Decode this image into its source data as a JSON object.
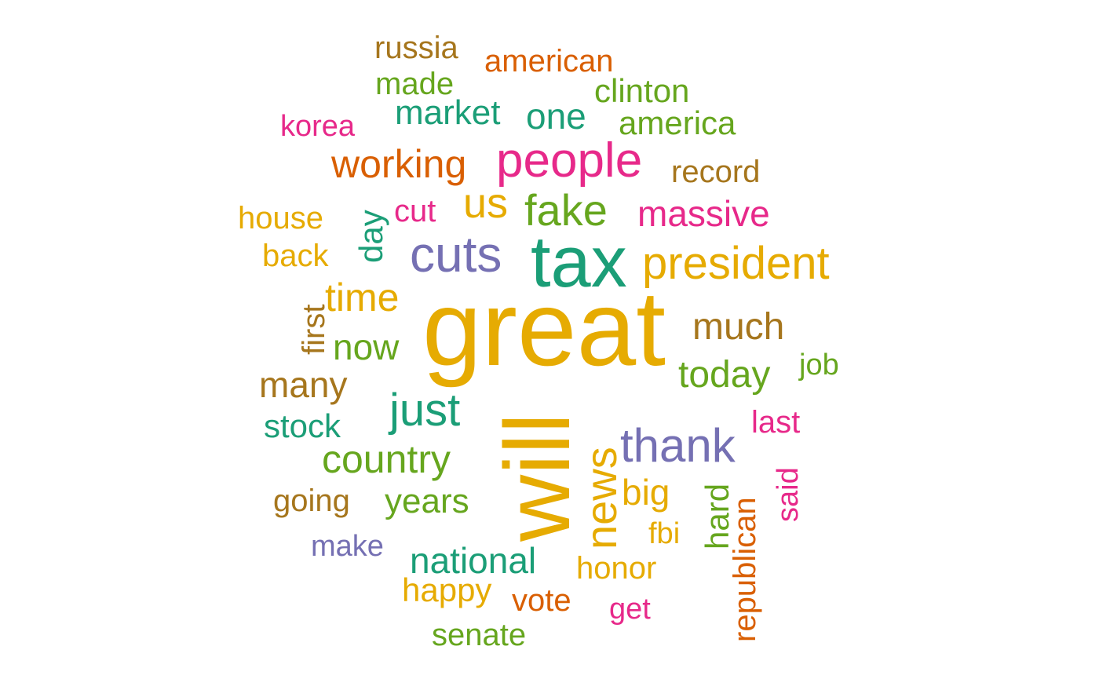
{
  "palette": {
    "teal": "#1b9e77",
    "orange": "#d95f02",
    "purple": "#7570b3",
    "magenta": "#e7298a",
    "green": "#66a61e",
    "gold": "#e6ab02",
    "brown": "#a6761d"
  },
  "words": [
    {
      "text": "great",
      "color": "gold"
    },
    {
      "text": "tax",
      "color": "teal"
    },
    {
      "text": "will",
      "color": "gold"
    },
    {
      "text": "people",
      "color": "magenta"
    },
    {
      "text": "cuts",
      "color": "purple"
    },
    {
      "text": "president",
      "color": "gold"
    },
    {
      "text": "fake",
      "color": "green"
    },
    {
      "text": "news",
      "color": "gold"
    },
    {
      "text": "thank",
      "color": "purple"
    },
    {
      "text": "just",
      "color": "teal"
    },
    {
      "text": "country",
      "color": "green"
    },
    {
      "text": "working",
      "color": "orange"
    },
    {
      "text": "time",
      "color": "gold"
    },
    {
      "text": "now",
      "color": "green"
    },
    {
      "text": "today",
      "color": "green"
    },
    {
      "text": "much",
      "color": "brown"
    },
    {
      "text": "massive",
      "color": "magenta"
    },
    {
      "text": "us",
      "color": "gold"
    },
    {
      "text": "many",
      "color": "brown"
    },
    {
      "text": "years",
      "color": "green"
    },
    {
      "text": "national",
      "color": "teal"
    },
    {
      "text": "big",
      "color": "gold"
    },
    {
      "text": "market",
      "color": "teal"
    },
    {
      "text": "america",
      "color": "green"
    },
    {
      "text": "american",
      "color": "orange"
    },
    {
      "text": "clinton",
      "color": "green"
    },
    {
      "text": "one",
      "color": "teal"
    },
    {
      "text": "record",
      "color": "brown"
    },
    {
      "text": "russia",
      "color": "brown"
    },
    {
      "text": "made",
      "color": "green"
    },
    {
      "text": "korea",
      "color": "magenta"
    },
    {
      "text": "house",
      "color": "gold"
    },
    {
      "text": "back",
      "color": "gold"
    },
    {
      "text": "cut",
      "color": "magenta"
    },
    {
      "text": "day",
      "color": "teal"
    },
    {
      "text": "first",
      "color": "brown"
    },
    {
      "text": "job",
      "color": "green"
    },
    {
      "text": "stock",
      "color": "teal"
    },
    {
      "text": "last",
      "color": "magenta"
    },
    {
      "text": "going",
      "color": "brown"
    },
    {
      "text": "make",
      "color": "purple"
    },
    {
      "text": "honor",
      "color": "gold"
    },
    {
      "text": "happy",
      "color": "gold"
    },
    {
      "text": "vote",
      "color": "orange"
    },
    {
      "text": "get",
      "color": "magenta"
    },
    {
      "text": "senate",
      "color": "green"
    },
    {
      "text": "fbi",
      "color": "gold"
    },
    {
      "text": "hard",
      "color": "green"
    },
    {
      "text": "republican",
      "color": "orange"
    },
    {
      "text": "said",
      "color": "magenta"
    }
  ]
}
